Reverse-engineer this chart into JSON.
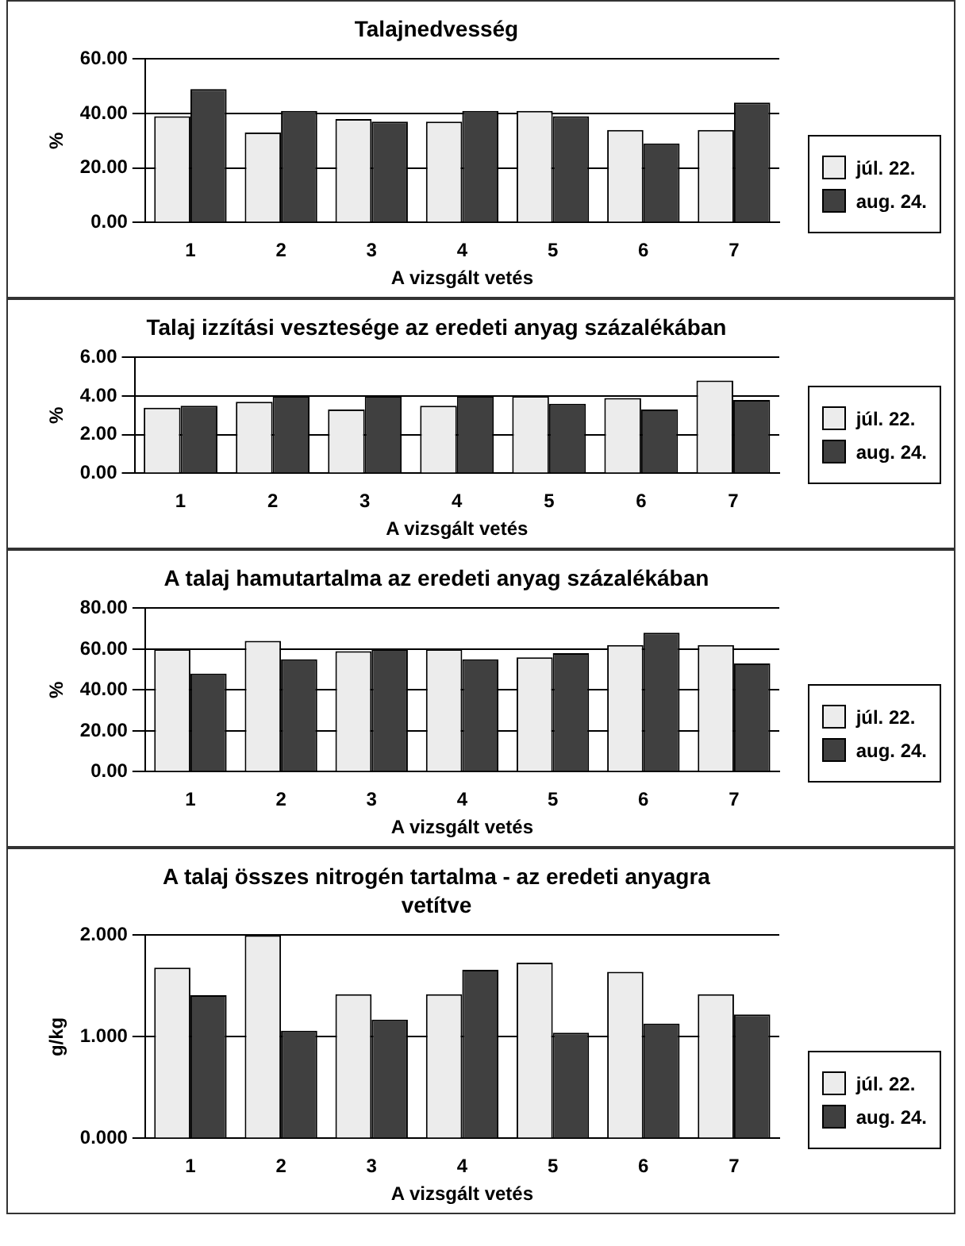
{
  "chart_data": [
    {
      "type": "bar",
      "title": "Talajnedvesség",
      "xlabel": "A vizsgált vetés",
      "ylabel": "%",
      "categories": [
        "1",
        "2",
        "3",
        "4",
        "5",
        "6",
        "7"
      ],
      "series": [
        {
          "name": "júl. 22.",
          "color": "#ececec",
          "values": [
            39,
            33,
            38,
            37,
            41,
            34,
            34
          ]
        },
        {
          "name": "aug. 24.",
          "color": "#404040",
          "values": [
            49,
            41,
            37,
            41,
            39,
            29,
            44
          ]
        }
      ],
      "ylim": [
        0,
        60
      ],
      "yticks": [
        {
          "value": 0,
          "label": "0.00"
        },
        {
          "value": 20,
          "label": "20.00"
        },
        {
          "value": 40,
          "label": "40.00"
        },
        {
          "value": 60,
          "label": "60.00"
        }
      ],
      "grid": "y",
      "legend": "right"
    },
    {
      "type": "bar",
      "title": "Talaj izzítási vesztesége az eredeti anyag százalékában",
      "xlabel": "A vizsgált vetés",
      "ylabel": "%",
      "categories": [
        "1",
        "2",
        "3",
        "4",
        "5",
        "6",
        "7"
      ],
      "series": [
        {
          "name": "júl. 22.",
          "color": "#ececec",
          "values": [
            3.4,
            3.7,
            3.3,
            3.5,
            4.0,
            3.9,
            4.8
          ]
        },
        {
          "name": "aug. 24.",
          "color": "#404040",
          "values": [
            3.5,
            4.0,
            4.0,
            4.0,
            3.6,
            3.3,
            3.8
          ]
        }
      ],
      "ylim": [
        0,
        6
      ],
      "yticks": [
        {
          "value": 0,
          "label": "0.00"
        },
        {
          "value": 2,
          "label": "2.00"
        },
        {
          "value": 4,
          "label": "4.00"
        },
        {
          "value": 6,
          "label": "6.00"
        }
      ],
      "grid": "y",
      "legend": "right"
    },
    {
      "type": "bar",
      "title": "A talaj hamutartalma  az eredeti anyag százalékában",
      "xlabel": "A vizsgált vetés",
      "ylabel": "%",
      "categories": [
        "1",
        "2",
        "3",
        "4",
        "5",
        "6",
        "7"
      ],
      "series": [
        {
          "name": "júl. 22.",
          "color": "#ececec",
          "values": [
            60,
            64,
            59,
            60,
            56,
            62,
            62
          ]
        },
        {
          "name": "aug. 24.",
          "color": "#404040",
          "values": [
            48,
            55,
            60,
            55,
            58,
            68,
            53
          ]
        }
      ],
      "ylim": [
        0,
        80
      ],
      "yticks": [
        {
          "value": 0,
          "label": "0.00"
        },
        {
          "value": 20,
          "label": "20.00"
        },
        {
          "value": 40,
          "label": "40.00"
        },
        {
          "value": 60,
          "label": "60.00"
        },
        {
          "value": 80,
          "label": "80.00"
        }
      ],
      "grid": "y",
      "legend": "right"
    },
    {
      "type": "bar",
      "title": "A talaj összes nitrogén tartalma - az eredeti anyagra vetítve",
      "xlabel": "A vizsgált vetés",
      "ylabel": "g/kg",
      "categories": [
        "1",
        "2",
        "3",
        "4",
        "5",
        "6",
        "7"
      ],
      "series": [
        {
          "name": "júl. 22.",
          "color": "#ececec",
          "values": [
            1.68,
            2.0,
            1.42,
            1.42,
            1.73,
            1.64,
            1.42
          ]
        },
        {
          "name": "aug. 24.",
          "color": "#404040",
          "values": [
            1.41,
            1.06,
            1.17,
            1.66,
            1.04,
            1.13,
            1.22
          ]
        }
      ],
      "ylim": [
        0,
        2
      ],
      "yticks": [
        {
          "value": 0,
          "label": "0.000"
        },
        {
          "value": 1,
          "label": "1.000"
        },
        {
          "value": 2,
          "label": "2.000"
        }
      ],
      "grid": "y",
      "legend": "right"
    }
  ]
}
